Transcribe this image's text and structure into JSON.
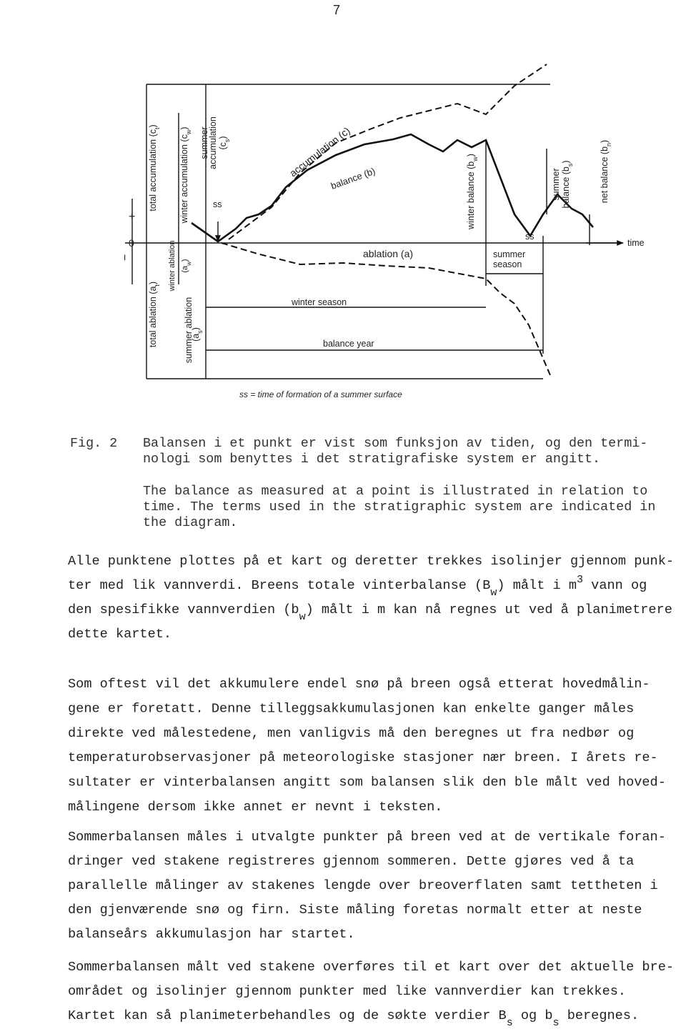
{
  "page_number": "7",
  "figure": {
    "axis": {
      "plus": "+",
      "zero": "0",
      "minus": "−",
      "time": "time"
    },
    "total_accumulation": [
      "total accumulation (c",
      "t",
      ")"
    ],
    "total_ablation": [
      "total ablation (a",
      "t",
      ")"
    ],
    "winter_accumulation": [
      "winter accumulation (c",
      "w",
      ")"
    ],
    "winter_ablation": [
      "winter ablation",
      "(a",
      "w",
      ")"
    ],
    "summer_accumulation": [
      "summer",
      "accumulation",
      "(c",
      "s",
      ")"
    ],
    "summer_ablation": [
      "summer ablation",
      "(a",
      "s",
      ")"
    ],
    "ss_left": "ss",
    "accumulation": "accumulation (c)",
    "balance": "balance (b)",
    "ablation": "ablation (a)",
    "winter_balance": [
      "winter balance (b",
      "w",
      ")"
    ],
    "ss_right": "ss",
    "summer_season": [
      "summer",
      "season"
    ],
    "summer_balance": [
      "summer",
      "balance (b",
      "s",
      ")"
    ],
    "net_balance": [
      "net balance (b",
      "n",
      ")"
    ],
    "winter_season": "winter season",
    "balance_year": "balance year",
    "footnote": "ss = time of formation of a summer surface"
  },
  "caption": {
    "label": "Fig. 2",
    "lines": [
      "Balansen i et punkt er vist som funksjon av tiden, og den termi-",
      "nologi som benyttes i det stratigrafiske system er angitt.",
      "The balance as measured at a point is illustrated in relation to",
      "time. The terms used in the stratigraphic system are indicated in",
      "the diagram."
    ]
  },
  "paragraphs": [
    [
      [
        "Alle punktene plottes på et kart og deretter trekkes isolinjer gjennom punk-"
      ],
      [
        "ter med lik vannverdi. Breens totale vinterbalanse (B",
        "w",
        ") målt i m",
        "3",
        " vann og"
      ],
      [
        "den spesifikke vannverdien (b",
        "w",
        ") målt i m kan nå regnes ut ved å planimetrere"
      ],
      [
        "dette kartet."
      ]
    ],
    [
      [
        "Som oftest vil det akkumulere endel snø på breen også etterat hovedmålin-"
      ],
      [
        "gene er foretatt. Denne tilleggsakkumulasjonen kan enkelte ganger måles"
      ],
      [
        "direkte ved målestedene, men vanligvis må den beregnes ut fra nedbør og"
      ],
      [
        "temperaturobservasjoner på meteorologiske stasjoner nær breen. I årets re-"
      ],
      [
        "sultater er vinterbalansen angitt som balansen slik den ble målt ved hoved-"
      ],
      [
        "målingene dersom ikke annet er nevnt i teksten."
      ]
    ],
    [
      [
        "Sommerbalansen måles i utvalgte punkter på breen ved at de vertikale foran-"
      ],
      [
        "dringer ved stakene registreres gjennom sommeren. Dette gjøres ved å ta"
      ],
      [
        "parallelle målinger av stakenes lengde over breoverflaten samt tettheten i"
      ],
      [
        "den gjenværende snø og firn. Siste måling foretas normalt etter at neste"
      ],
      [
        "balanseårs akkumulasjon har startet."
      ]
    ],
    [
      [
        "Sommerbalansen målt ved stakene overføres til et kart over det aktuelle bre-"
      ],
      [
        "området og isolinjer gjennom punkter med like vannverdier kan trekkes."
      ],
      [
        "Kartet kan så planimeterbehandles og de søkte verdier B",
        "s",
        " og b",
        "s",
        " beregnes."
      ]
    ]
  ]
}
